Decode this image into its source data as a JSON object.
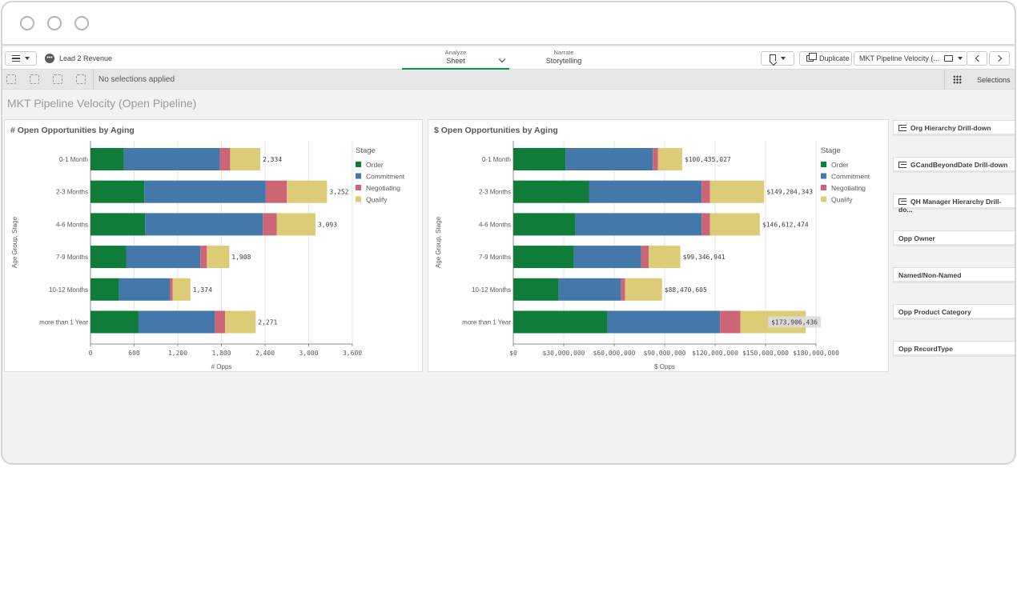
{
  "app": {
    "name": "Lead 2 Revenue",
    "sheet_title": "MKT Pipeline Velocity (Open Pipeline)"
  },
  "tabs": [
    {
      "sub": "Analyze",
      "label": "Sheet"
    },
    {
      "sub": "Narrate",
      "label": "Storytelling"
    }
  ],
  "toolbar": {
    "duplicate_label": "Duplicate",
    "sheet_selector_label": "MKT Pipeline Velocity (..."
  },
  "selections": {
    "status": "No selections applied",
    "label": "Selections"
  },
  "filters": [
    {
      "label": "Org Hierarchy Drill-down",
      "drill": true
    },
    {
      "label": "GCandBeyondDate Drill-down",
      "drill": true
    },
    {
      "label": "QH Manager Hierarchy Drill-do...",
      "drill": true
    },
    {
      "label": "Opp Owner",
      "drill": false
    },
    {
      "label": "Named/Non-Named",
      "drill": false
    },
    {
      "label": "Opp Product Category",
      "drill": false
    },
    {
      "label": "Opp RecordType",
      "drill": false
    }
  ],
  "colors": {
    "Order": "#107c3a",
    "Commitment": "#4477aa",
    "Negotiating": "#cc6677",
    "Qualify": "#ddcc77"
  },
  "chart_data": [
    {
      "type": "bar",
      "orientation": "horizontal",
      "stacked": true,
      "title": "# Open Opportunities by Aging",
      "xlabel": "# Opps",
      "ylabel": "Age Group, Stage",
      "legend_title": "Stage",
      "legend_position": "right",
      "categories": [
        "0-1 Month",
        "2-3 Months",
        "4-6 Months",
        "7-9 Months",
        "10-12 Months",
        "more than 1 Year"
      ],
      "series": [
        {
          "name": "Order",
          "values": [
            460,
            740,
            750,
            490,
            390,
            660
          ]
        },
        {
          "name": "Commitment",
          "values": [
            1320,
            1670,
            1620,
            1020,
            700,
            1050
          ]
        },
        {
          "name": "Negotiating",
          "values": [
            140,
            290,
            190,
            90,
            40,
            140
          ]
        },
        {
          "name": "Qualify",
          "values": [
            414,
            552,
            533,
            308,
            244,
            421
          ]
        }
      ],
      "totals": [
        "2,334",
        "3,252",
        "3,093",
        "1,908",
        "1,374",
        "2,271"
      ],
      "xlim": [
        0,
        3600
      ],
      "xticks": [
        0,
        600,
        1200,
        1800,
        2400,
        3000,
        3600
      ],
      "xtick_labels": [
        "0",
        "600",
        "1,200",
        "1,800",
        "2,400",
        "3,000",
        "3,600"
      ],
      "grid": true
    },
    {
      "type": "bar",
      "orientation": "horizontal",
      "stacked": true,
      "title": "$ Open Opportunities by Aging",
      "xlabel": "$ Opps",
      "ylabel": "Age Group, Stage",
      "legend_title": "Stage",
      "legend_position": "right",
      "categories": [
        "0-1 Month",
        "2-3 Months",
        "4-6 Months",
        "7-9 Months",
        "10-12 Months",
        "more than 1 Year"
      ],
      "series": [
        {
          "name": "Order",
          "values": [
            31000000,
            45000000,
            37000000,
            36000000,
            27000000,
            56000000
          ]
        },
        {
          "name": "Commitment",
          "values": [
            52000000,
            67000000,
            75000000,
            40000000,
            37000000,
            67000000
          ]
        },
        {
          "name": "Negotiating",
          "values": [
            3000000,
            5000000,
            5000000,
            4500000,
            2500000,
            12000000
          ]
        },
        {
          "name": "Qualify",
          "values": [
            14435027,
            32204343,
            29612474,
            18846941,
            21970605,
            38906436
          ]
        }
      ],
      "totals": [
        "$100,435,027",
        "$149,204,343",
        "$146,612,474",
        "$99,346,941",
        "$88,470,605",
        "$173,906,436"
      ],
      "xlim": [
        0,
        180000000
      ],
      "xticks": [
        0,
        30000000,
        60000000,
        90000000,
        120000000,
        150000000,
        180000000
      ],
      "xtick_labels": [
        "$0",
        "$30,000,000",
        "$60,000,000",
        "$90,000,000",
        "$120,000,000",
        "$150,000,000",
        "$180,000,000"
      ],
      "grid": true
    }
  ]
}
